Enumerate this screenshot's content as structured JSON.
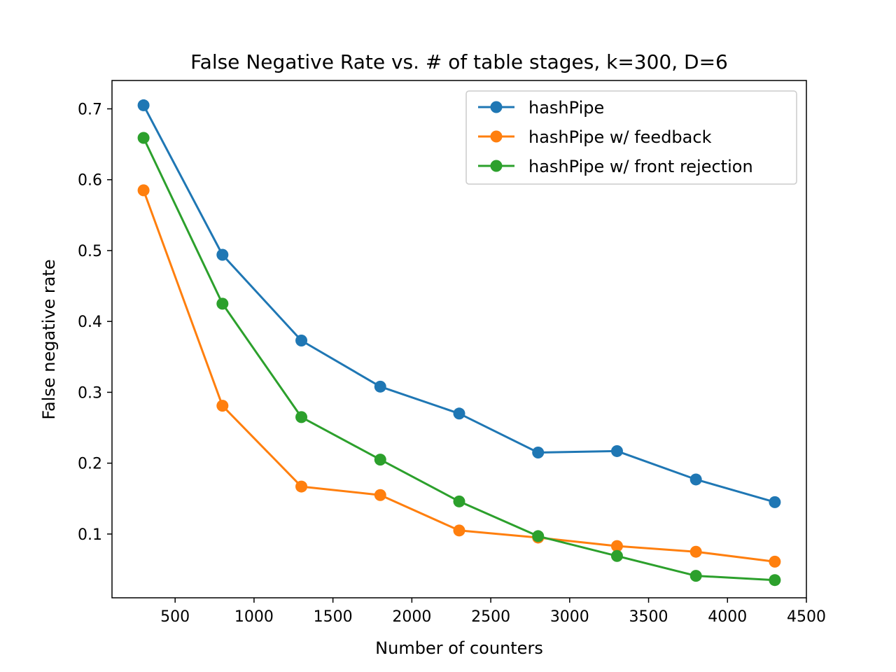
{
  "chart_data": {
    "type": "line",
    "title": "False Negative Rate vs. # of table stages, k=300, D=6",
    "xlabel": "Number of counters",
    "ylabel": "False negative rate",
    "x": [
      300,
      800,
      1300,
      1800,
      2300,
      2800,
      3300,
      3800,
      4300
    ],
    "xlim": [
      100,
      4500
    ],
    "ylim": [
      0.01,
      0.74
    ],
    "xticks": [
      500,
      1000,
      1500,
      2000,
      2500,
      3000,
      3500,
      4000,
      4500
    ],
    "xtick_labels": [
      "500",
      "1000",
      "1500",
      "2000",
      "2500",
      "3000",
      "3500",
      "4000",
      "4500"
    ],
    "yticks": [
      0.1,
      0.2,
      0.3,
      0.4,
      0.5,
      0.6,
      0.7
    ],
    "ytick_labels": [
      "0.1",
      "0.2",
      "0.3",
      "0.4",
      "0.5",
      "0.6",
      "0.7"
    ],
    "grid": false,
    "legend_position": "top-right",
    "series": [
      {
        "name": "hashPipe",
        "color": "#1f77b4",
        "values": [
          0.705,
          0.494,
          0.373,
          0.308,
          0.27,
          0.215,
          0.217,
          0.177,
          0.145
        ]
      },
      {
        "name": "hashPipe w/ feedback",
        "color": "#ff7f0e",
        "values": [
          0.585,
          0.281,
          0.167,
          0.155,
          0.105,
          0.095,
          0.083,
          0.075,
          0.061
        ]
      },
      {
        "name": "hashPipe w/ front rejection",
        "color": "#2ca02c",
        "values": [
          0.659,
          0.425,
          0.265,
          0.205,
          0.146,
          0.097,
          0.069,
          0.041,
          0.035
        ]
      }
    ]
  }
}
